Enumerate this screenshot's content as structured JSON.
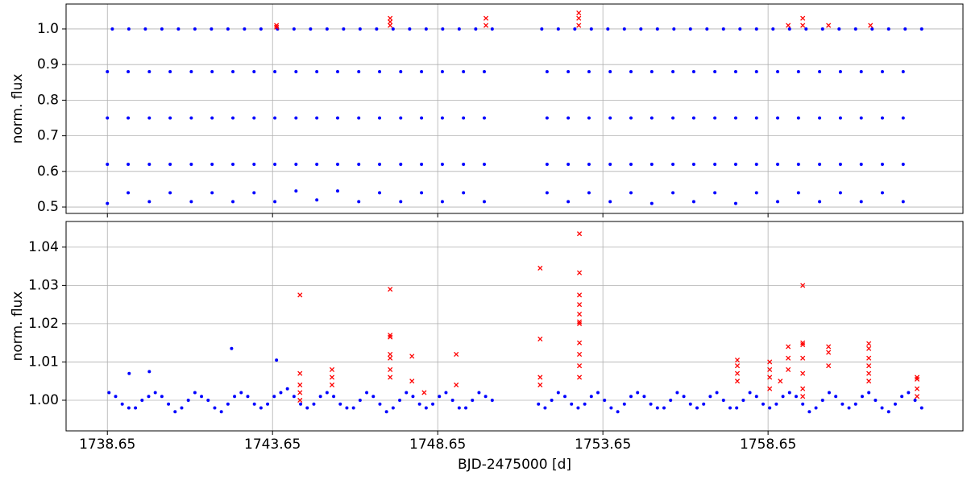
{
  "chart_data": [
    {
      "type": "scatter",
      "ylabel": "norm. flux",
      "xlim": [
        1737.4,
        1764.55
      ],
      "ylim": [
        0.482,
        1.07
      ],
      "xticks": [
        1738.65,
        1743.65,
        1748.65,
        1753.65,
        1758.65
      ],
      "yticks": [
        0.5,
        0.6,
        0.7,
        0.8,
        0.9,
        {
          "value": 1,
          "label": "1.0"
        }
      ],
      "grid": true,
      "series": [
        {
          "color": "#0000ff",
          "marker": "dot",
          "x": [
            1738.8,
            1739.3,
            1739.8,
            1740.3,
            1740.8,
            1741.3,
            1741.8,
            1742.3,
            1742.8,
            1743.3,
            1743.8,
            1744.3,
            1744.8,
            1745.3,
            1745.8,
            1746.3,
            1746.8,
            1747.3,
            1747.8,
            1748.3,
            1748.8,
            1749.3,
            1749.8,
            1750.3,
            1751.8,
            1752.3,
            1752.8,
            1753.3,
            1753.8,
            1754.3,
            1754.8,
            1755.3,
            1755.8,
            1756.3,
            1756.8,
            1757.3,
            1757.8,
            1758.3,
            1758.8,
            1759.3,
            1759.8,
            1760.3,
            1760.8,
            1761.3,
            1761.8,
            1762.3,
            1762.8,
            1763.3,
            1738.65,
            1738.65,
            1738.65,
            1738.65,
            1739.28,
            1739.28,
            1739.28,
            1739.28,
            1739.92,
            1739.92,
            1739.92,
            1739.92,
            1740.55,
            1740.55,
            1740.55,
            1740.55,
            1741.19,
            1741.19,
            1741.19,
            1741.19,
            1741.82,
            1741.82,
            1741.82,
            1741.82,
            1742.45,
            1742.45,
            1742.45,
            1742.45,
            1743.09,
            1743.09,
            1743.09,
            1743.09,
            1743.72,
            1743.72,
            1743.72,
            1743.72,
            1744.36,
            1744.36,
            1744.36,
            1744.36,
            1744.99,
            1744.99,
            1744.99,
            1744.99,
            1745.62,
            1745.62,
            1745.62,
            1745.62,
            1746.26,
            1746.26,
            1746.26,
            1746.26,
            1746.89,
            1746.89,
            1746.89,
            1746.89,
            1747.53,
            1747.53,
            1747.53,
            1747.53,
            1748.16,
            1748.16,
            1748.16,
            1748.16,
            1748.79,
            1748.79,
            1748.79,
            1748.79,
            1749.43,
            1749.43,
            1749.43,
            1749.43,
            1750.06,
            1750.06,
            1750.06,
            1750.06,
            1751.96,
            1751.96,
            1751.96,
            1751.96,
            1752.6,
            1752.6,
            1752.6,
            1752.6,
            1753.23,
            1753.23,
            1753.23,
            1753.23,
            1753.87,
            1753.87,
            1753.87,
            1753.87,
            1754.5,
            1754.5,
            1754.5,
            1754.5,
            1755.13,
            1755.13,
            1755.13,
            1755.13,
            1755.77,
            1755.77,
            1755.77,
            1755.77,
            1756.4,
            1756.4,
            1756.4,
            1756.4,
            1757.04,
            1757.04,
            1757.04,
            1757.04,
            1757.67,
            1757.67,
            1757.67,
            1757.67,
            1758.3,
            1758.3,
            1758.3,
            1758.3,
            1758.94,
            1758.94,
            1758.94,
            1758.94,
            1759.57,
            1759.57,
            1759.57,
            1759.57,
            1760.21,
            1760.21,
            1760.21,
            1760.21,
            1760.84,
            1760.84,
            1760.84,
            1760.84,
            1761.47,
            1761.47,
            1761.47,
            1761.47,
            1762.11,
            1762.11,
            1762.11,
            1762.11,
            1762.74,
            1762.74,
            1762.74,
            1762.74
          ],
          "values": [
            1.0,
            1.0,
            1.0,
            1.0,
            1.0,
            1.0,
            1.0,
            1.0,
            1.0,
            1.0,
            1.0,
            1.0,
            1.0,
            1.0,
            1.0,
            1.0,
            1.0,
            1.0,
            1.0,
            1.0,
            1.0,
            1.0,
            1.0,
            1.0,
            1.0,
            1.0,
            1.0,
            1.0,
            1.0,
            1.0,
            1.0,
            1.0,
            1.0,
            1.0,
            1.0,
            1.0,
            1.0,
            1.0,
            1.0,
            1.0,
            1.0,
            1.0,
            1.0,
            1.0,
            1.0,
            1.0,
            1.0,
            1.0,
            0.88,
            0.75,
            0.62,
            0.51,
            0.88,
            0.75,
            0.62,
            0.54,
            0.88,
            0.75,
            0.62,
            0.515,
            0.88,
            0.75,
            0.62,
            0.54,
            0.88,
            0.75,
            0.62,
            0.515,
            0.88,
            0.75,
            0.62,
            0.54,
            0.88,
            0.75,
            0.62,
            0.515,
            0.88,
            0.75,
            0.62,
            0.54,
            0.88,
            0.75,
            0.62,
            0.515,
            0.88,
            0.75,
            0.62,
            0.545,
            0.88,
            0.75,
            0.62,
            0.52,
            0.88,
            0.75,
            0.62,
            0.545,
            0.88,
            0.75,
            0.62,
            0.515,
            0.88,
            0.75,
            0.62,
            0.54,
            0.88,
            0.75,
            0.62,
            0.515,
            0.88,
            0.75,
            0.62,
            0.54,
            0.88,
            0.75,
            0.62,
            0.515,
            0.88,
            0.75,
            0.62,
            0.54,
            0.88,
            0.75,
            0.62,
            0.515,
            0.88,
            0.75,
            0.62,
            0.54,
            0.88,
            0.75,
            0.62,
            0.515,
            0.88,
            0.75,
            0.62,
            0.54,
            0.88,
            0.75,
            0.62,
            0.515,
            0.88,
            0.75,
            0.62,
            0.54,
            0.88,
            0.75,
            0.62,
            0.51,
            0.88,
            0.75,
            0.62,
            0.54,
            0.88,
            0.75,
            0.62,
            0.515,
            0.88,
            0.75,
            0.62,
            0.54,
            0.88,
            0.75,
            0.62,
            0.51,
            0.88,
            0.75,
            0.62,
            0.54,
            0.88,
            0.75,
            0.62,
            0.515,
            0.88,
            0.75,
            0.62,
            0.54,
            0.88,
            0.75,
            0.62,
            0.515,
            0.88,
            0.75,
            0.62,
            0.54,
            0.88,
            0.75,
            0.62,
            0.515,
            0.88,
            0.75,
            0.62,
            0.54,
            0.88,
            0.75,
            0.62,
            0.515
          ]
        },
        {
          "color": "#ff0000",
          "marker": "x",
          "x": [
            1743.77,
            1743.77,
            1747.21,
            1747.21,
            1747.21,
            1750.11,
            1750.11,
            1752.92,
            1752.92,
            1752.92,
            1759.26,
            1759.7,
            1759.7,
            1760.48,
            1761.75
          ],
          "values": [
            1.005,
            1.01,
            1.01,
            1.02,
            1.03,
            1.01,
            1.03,
            1.01,
            1.03,
            1.045,
            1.01,
            1.01,
            1.03,
            1.01,
            1.01
          ]
        }
      ]
    },
    {
      "type": "scatter",
      "ylabel": "norm. flux",
      "xlabel": "BJD-2475000 [d]",
      "xlim": [
        1737.4,
        1764.55
      ],
      "ylim": [
        0.992,
        1.0467
      ],
      "xticks": [
        1738.65,
        1743.65,
        1748.65,
        1753.65,
        1758.65
      ],
      "yticks": [
        {
          "value": 1,
          "label": "1.00"
        },
        {
          "value": 1.01,
          "label": "1.01"
        },
        {
          "value": 1.02,
          "label": "1.02"
        },
        {
          "value": 1.03,
          "label": "1.03"
        },
        {
          "value": 1.04,
          "label": "1.04"
        }
      ],
      "grid": true,
      "series": [
        {
          "color": "#0000ff",
          "marker": "dot",
          "x": [
            1738.7,
            1738.9,
            1739.1,
            1739.3,
            1739.5,
            1739.7,
            1739.9,
            1740.1,
            1740.3,
            1740.5,
            1740.7,
            1740.9,
            1741.1,
            1741.3,
            1741.5,
            1741.7,
            1741.9,
            1742.1,
            1742.3,
            1742.5,
            1742.7,
            1742.9,
            1743.1,
            1743.3,
            1743.5,
            1743.7,
            1743.9,
            1744.1,
            1744.3,
            1744.5,
            1744.7,
            1744.9,
            1745.1,
            1745.3,
            1745.5,
            1745.7,
            1745.9,
            1746.1,
            1746.3,
            1746.5,
            1746.7,
            1746.9,
            1747.1,
            1747.3,
            1747.5,
            1747.7,
            1747.9,
            1748.1,
            1748.3,
            1748.5,
            1748.7,
            1748.9,
            1749.1,
            1749.3,
            1749.5,
            1749.7,
            1749.9,
            1750.1,
            1750.3,
            1751.7,
            1751.9,
            1752.1,
            1752.3,
            1752.5,
            1752.7,
            1752.9,
            1753.1,
            1753.3,
            1753.5,
            1753.7,
            1753.9,
            1754.1,
            1754.3,
            1754.5,
            1754.7,
            1754.9,
            1755.1,
            1755.3,
            1755.5,
            1755.7,
            1755.9,
            1756.1,
            1756.3,
            1756.5,
            1756.7,
            1756.9,
            1757.1,
            1757.3,
            1757.5,
            1757.7,
            1757.9,
            1758.1,
            1758.3,
            1758.5,
            1758.7,
            1758.9,
            1759.1,
            1759.3,
            1759.5,
            1759.7,
            1759.9,
            1760.1,
            1760.3,
            1760.5,
            1760.7,
            1760.9,
            1761.1,
            1761.3,
            1761.5,
            1761.7,
            1761.9,
            1762.1,
            1762.3,
            1762.5,
            1762.7,
            1762.9,
            1763.1,
            1763.3,
            1739.31,
            1739.92,
            1742.41,
            1743.77
          ],
          "values": [
            1.002,
            1.001,
            0.999,
            0.998,
            0.998,
            1.0,
            1.001,
            1.002,
            1.001,
            0.999,
            0.997,
            0.998,
            1.0,
            1.002,
            1.001,
            1.0,
            0.998,
            0.997,
            0.999,
            1.001,
            1.002,
            1.001,
            0.999,
            0.998,
            0.999,
            1.001,
            1.002,
            1.003,
            1.001,
            0.999,
            0.998,
            0.999,
            1.001,
            1.002,
            1.001,
            0.999,
            0.998,
            0.998,
            1.0,
            1.002,
            1.001,
            0.999,
            0.997,
            0.998,
            1.0,
            1.002,
            1.001,
            0.999,
            0.998,
            0.999,
            1.001,
            1.002,
            1.0,
            0.998,
            0.998,
            1.0,
            1.002,
            1.001,
            1.0,
            0.999,
            0.998,
            1.0,
            1.002,
            1.001,
            0.999,
            0.998,
            0.999,
            1.001,
            1.002,
            1.0,
            0.998,
            0.997,
            0.999,
            1.001,
            1.002,
            1.001,
            0.999,
            0.998,
            0.998,
            1.0,
            1.002,
            1.001,
            0.999,
            0.998,
            0.999,
            1.001,
            1.002,
            1.0,
            0.998,
            0.998,
            1.0,
            1.002,
            1.001,
            0.999,
            0.998,
            0.999,
            1.001,
            1.002,
            1.001,
            0.999,
            0.997,
            0.998,
            1.0,
            1.002,
            1.001,
            0.999,
            0.998,
            0.999,
            1.001,
            1.002,
            1.0,
            0.998,
            0.997,
            0.999,
            1.001,
            1.002,
            1.0,
            0.998,
            1.007,
            1.0075,
            1.0135,
            1.0105
          ]
        },
        {
          "color": "#ff0000",
          "marker": "x",
          "x": [
            1744.48,
            1744.48,
            1744.48,
            1744.48,
            1744.48,
            1745.45,
            1745.45,
            1745.45,
            1747.21,
            1747.21,
            1747.21,
            1747.21,
            1747.21,
            1747.21,
            1747.21,
            1747.87,
            1747.87,
            1748.24,
            1749.21,
            1749.21,
            1751.75,
            1751.75,
            1751.75,
            1751.75,
            1752.94,
            1752.94,
            1752.94,
            1752.94,
            1752.94,
            1752.94,
            1752.94,
            1752.94,
            1752.94,
            1752.94,
            1752.94,
            1757.72,
            1757.72,
            1757.72,
            1757.72,
            1758.7,
            1758.7,
            1758.7,
            1758.7,
            1759.02,
            1759.26,
            1759.26,
            1759.26,
            1759.7,
            1759.7,
            1759.7,
            1759.7,
            1759.7,
            1759.7,
            1759.7,
            1760.48,
            1760.48,
            1760.48,
            1761.7,
            1761.7,
            1761.7,
            1761.7,
            1761.7,
            1761.7,
            1763.16,
            1763.16,
            1763.16,
            1763.16
          ],
          "values": [
            1.0275,
            1.007,
            1.004,
            1.002,
            1.0,
            1.008,
            1.006,
            1.004,
            1.029,
            1.017,
            1.0165,
            1.012,
            1.011,
            1.008,
            1.006,
            1.0115,
            1.005,
            1.002,
            1.012,
            1.004,
            1.0345,
            1.016,
            1.006,
            1.004,
            1.0435,
            1.0333,
            1.0275,
            1.025,
            1.0225,
            1.0205,
            1.02,
            1.015,
            1.012,
            1.009,
            1.006,
            1.0105,
            1.009,
            1.007,
            1.005,
            1.01,
            1.008,
            1.006,
            1.003,
            1.005,
            1.014,
            1.011,
            1.008,
            1.03,
            1.015,
            1.0145,
            1.011,
            1.007,
            1.003,
            1.001,
            1.014,
            1.0125,
            1.009,
            1.0148,
            1.0135,
            1.011,
            1.009,
            1.007,
            1.005,
            1.006,
            1.0055,
            1.003,
            1.001
          ]
        }
      ]
    }
  ]
}
